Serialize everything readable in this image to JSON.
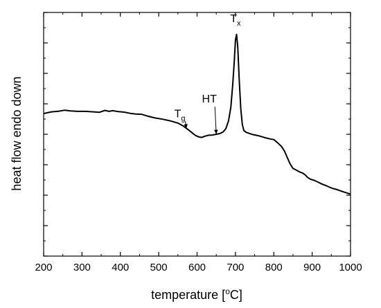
{
  "chart_data": {
    "type": "line",
    "title": "",
    "xlabel": {
      "main": "temperature [",
      "sup": "o",
      "tail": "C]"
    },
    "ylabel": "heat flow endo down",
    "xlim": [
      200,
      1000
    ],
    "ylim": [
      0,
      100
    ],
    "x_ticks": [
      200,
      300,
      400,
      500,
      600,
      700,
      800,
      900,
      1000
    ],
    "y_ticks_major": [
      0,
      12.5,
      25,
      37.5,
      50,
      62.5,
      75,
      87.5,
      100
    ],
    "grid": false,
    "series": [
      {
        "x": [
          200,
          220,
          240,
          255,
          270,
          290,
          310,
          330,
          345,
          360,
          370,
          380,
          395,
          410,
          425,
          440,
          455,
          470,
          490,
          510,
          530,
          550,
          565,
          580,
          595,
          605,
          612,
          620,
          630,
          640,
          650,
          660,
          668,
          675,
          682,
          688,
          693,
          697,
          700,
          703,
          706,
          710,
          714,
          718,
          722,
          728,
          735,
          745,
          760,
          775,
          790,
          800,
          810,
          820,
          828,
          835,
          842,
          850,
          860,
          868,
          876,
          882,
          888,
          895,
          905,
          915,
          925,
          935,
          945,
          955,
          965,
          975,
          985,
          993,
          1000
        ],
        "y": [
          58.5,
          59.2,
          59.5,
          59.9,
          59.6,
          59.4,
          59.4,
          59.2,
          59.0,
          59.8,
          59.4,
          59.7,
          59.3,
          59.1,
          58.6,
          58.3,
          58.2,
          57.5,
          56.7,
          56.2,
          55.5,
          54.6,
          53.3,
          51.5,
          49.6,
          48.9,
          48.7,
          49.2,
          49.6,
          49.7,
          50.0,
          50.3,
          51.0,
          52.3,
          55.5,
          61.0,
          70.5,
          80.0,
          88.7,
          91.0,
          86.0,
          72.0,
          60.5,
          54.0,
          51.5,
          50.8,
          50.4,
          49.9,
          49.4,
          48.7,
          48.1,
          47.8,
          46.5,
          45.0,
          43.0,
          40.5,
          38.0,
          36.0,
          35.2,
          34.5,
          34.0,
          33.3,
          32.3,
          31.6,
          31.1,
          30.4,
          29.6,
          29.0,
          28.3,
          27.7,
          27.3,
          26.7,
          26.2,
          25.8,
          25.4
        ]
      }
    ],
    "annotations": [
      {
        "label": "T",
        "sub": "g",
        "x": 555,
        "y": 57,
        "arrow_to": [
          572,
          52.3
        ]
      },
      {
        "label": "HT",
        "x": 632,
        "y": 63,
        "arrow_to": [
          650,
          50.0
        ]
      },
      {
        "label": "T",
        "sub": "x",
        "x": 700,
        "y": 96
      }
    ]
  }
}
